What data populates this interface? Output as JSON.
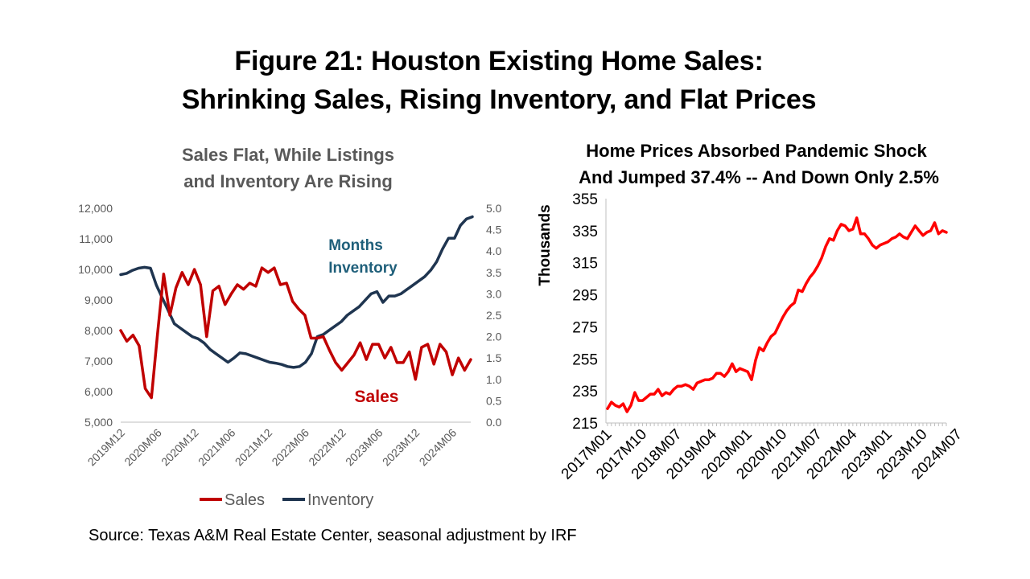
{
  "page": {
    "title_line1": "Figure 21: Houston Existing Home Sales:",
    "title_line2": "Shrinking Sales, Rising Inventory, and Flat Prices",
    "source": "Source: Texas A&M Real Estate Center, seasonal adjustment by IRF"
  },
  "colors": {
    "sales": "#c00000",
    "inventory": "#1f3550",
    "price": "#ff0000",
    "inv_annotation": "#1f5f7a"
  },
  "chart_data": [
    {
      "type": "line",
      "title_line1": "Sales Flat, While Listings",
      "title_line2": "and Inventory Are Rising",
      "y_left": {
        "ticks": [
          "5,000",
          "6,000",
          "7,000",
          "8,000",
          "9,000",
          "10,000",
          "11,000",
          "12,000"
        ],
        "range": [
          5000,
          12000
        ]
      },
      "y_right": {
        "ticks": [
          "0.0",
          "0.5",
          "1.0",
          "1.5",
          "2.0",
          "2.5",
          "3.0",
          "3.5",
          "4.0",
          "4.5",
          "5.0"
        ],
        "range": [
          0,
          5
        ]
      },
      "x_tick_labels": [
        "2019M12",
        "2020M06",
        "2020M12",
        "2021M06",
        "2021M12",
        "2022M06",
        "2022M12",
        "2023M06",
        "2023M12",
        "2024M06"
      ],
      "x_start": "2019M12",
      "annotations": {
        "inventory_line1": "Months",
        "inventory_line2": "Inventory",
        "sales": "Sales"
      },
      "legend": [
        "Sales",
        "Inventory"
      ],
      "series": [
        {
          "name": "Sales",
          "axis": "left",
          "values": [
            8000,
            7650,
            7850,
            7500,
            6100,
            5800,
            7900,
            9850,
            8500,
            9400,
            9900,
            9500,
            10000,
            9500,
            7800,
            9300,
            9450,
            8850,
            9200,
            9500,
            9350,
            9550,
            9450,
            10050,
            9900,
            10050,
            9500,
            9550,
            8950,
            8700,
            8500,
            7750,
            7750,
            7800,
            7350,
            6950,
            6700,
            6950,
            7200,
            7600,
            7050,
            7550,
            7550,
            7100,
            7450,
            6950,
            6950,
            7300,
            6400,
            7450,
            7550,
            6900,
            7550,
            7300,
            6550,
            7100,
            6700,
            7050
          ]
        },
        {
          "name": "Inventory",
          "axis": "right",
          "values": [
            3.45,
            3.48,
            3.55,
            3.6,
            3.62,
            3.6,
            3.2,
            2.9,
            2.6,
            2.3,
            2.2,
            2.1,
            2.0,
            1.95,
            1.85,
            1.7,
            1.6,
            1.5,
            1.4,
            1.5,
            1.62,
            1.6,
            1.55,
            1.5,
            1.45,
            1.4,
            1.38,
            1.35,
            1.3,
            1.28,
            1.3,
            1.4,
            1.6,
            2.0,
            2.05,
            2.15,
            2.25,
            2.35,
            2.5,
            2.6,
            2.7,
            2.85,
            3.0,
            3.05,
            2.8,
            2.95,
            2.95,
            3.0,
            3.1,
            3.2,
            3.3,
            3.4,
            3.55,
            3.75,
            4.05,
            4.3,
            4.3,
            4.6,
            4.75,
            4.8
          ]
        }
      ]
    },
    {
      "type": "line",
      "title_line1": "Home Prices Absorbed Pandemic Shock",
      "title_line2": "And Jumped 37.4% -- And Down Only 2.5%",
      "ylabel": "Thousands",
      "y_ticks": [
        "215",
        "235",
        "255",
        "275",
        "295",
        "315",
        "335",
        "355"
      ],
      "ylim": [
        215,
        355
      ],
      "x_tick_labels": [
        "2017M01",
        "2017M10",
        "2018M07",
        "2019M04",
        "2020M01",
        "2020M10",
        "2021M07",
        "2022M04",
        "2023M01",
        "2023M10",
        "2024M07"
      ],
      "x_start": "2017M01",
      "series": [
        {
          "name": "Home Price",
          "values": [
            224,
            228,
            226,
            225,
            227,
            222,
            226,
            234,
            229,
            229,
            231,
            233,
            233,
            236,
            232,
            234,
            233,
            236,
            238,
            238,
            239,
            238,
            236,
            240,
            241,
            242,
            242,
            243,
            246,
            246,
            244,
            247,
            252,
            247,
            249,
            248,
            247,
            242,
            254,
            262,
            260,
            265,
            269,
            271,
            276,
            281,
            285,
            288,
            290,
            298,
            297,
            302,
            306,
            309,
            313,
            318,
            325,
            330,
            329,
            335,
            339,
            338,
            335,
            336,
            343,
            333,
            333,
            330,
            326,
            324,
            326,
            327,
            328,
            330,
            331,
            333,
            331,
            330,
            334,
            338,
            335,
            332,
            334,
            335,
            340,
            333,
            335,
            334
          ]
        }
      ]
    }
  ]
}
